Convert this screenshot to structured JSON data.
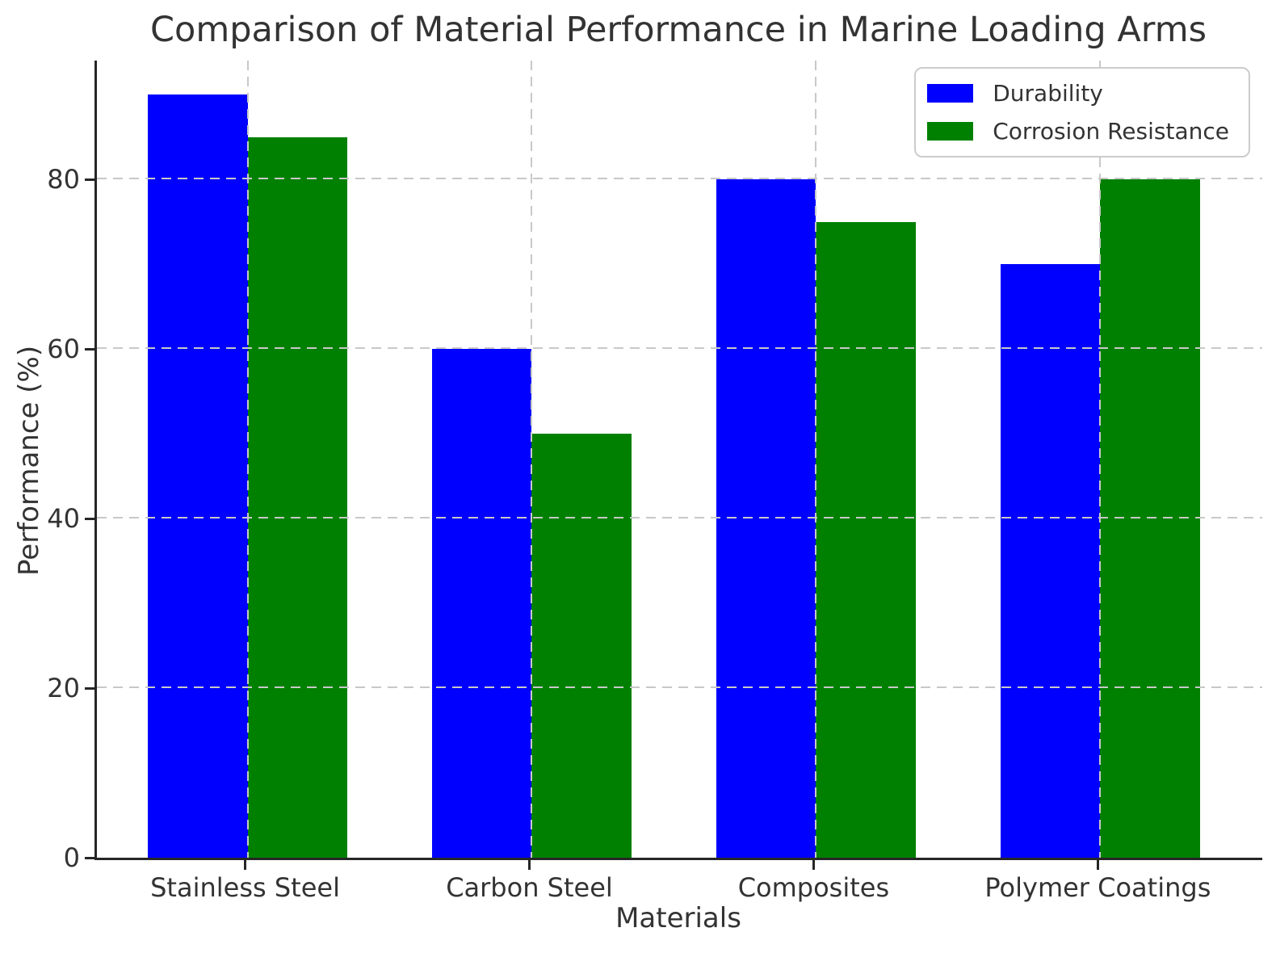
{
  "chart_data": {
    "type": "bar",
    "title": "Comparison of Material Performance in Marine Loading Arms",
    "xlabel": "Materials",
    "ylabel": "Performance (%)",
    "categories": [
      "Stainless Steel",
      "Carbon Steel",
      "Composites",
      "Polymer Coatings"
    ],
    "series": [
      {
        "name": "Durability",
        "color": "#0000ff",
        "values": [
          90,
          60,
          80,
          70
        ]
      },
      {
        "name": "Corrosion Resistance",
        "color": "#008000",
        "values": [
          85,
          50,
          75,
          80
        ]
      }
    ],
    "ylim": [
      0,
      94
    ],
    "xlim": [
      -0.53,
      3.57
    ],
    "yticks": [
      0,
      20,
      40,
      60,
      80
    ],
    "bar_width": 0.35,
    "grid": "dashed",
    "grid_on": true,
    "grid_color": "#c8c8c8",
    "grid_over_bars": true,
    "legend_position": "upper right",
    "text_color": "#333333",
    "axis_color": "#262626"
  }
}
